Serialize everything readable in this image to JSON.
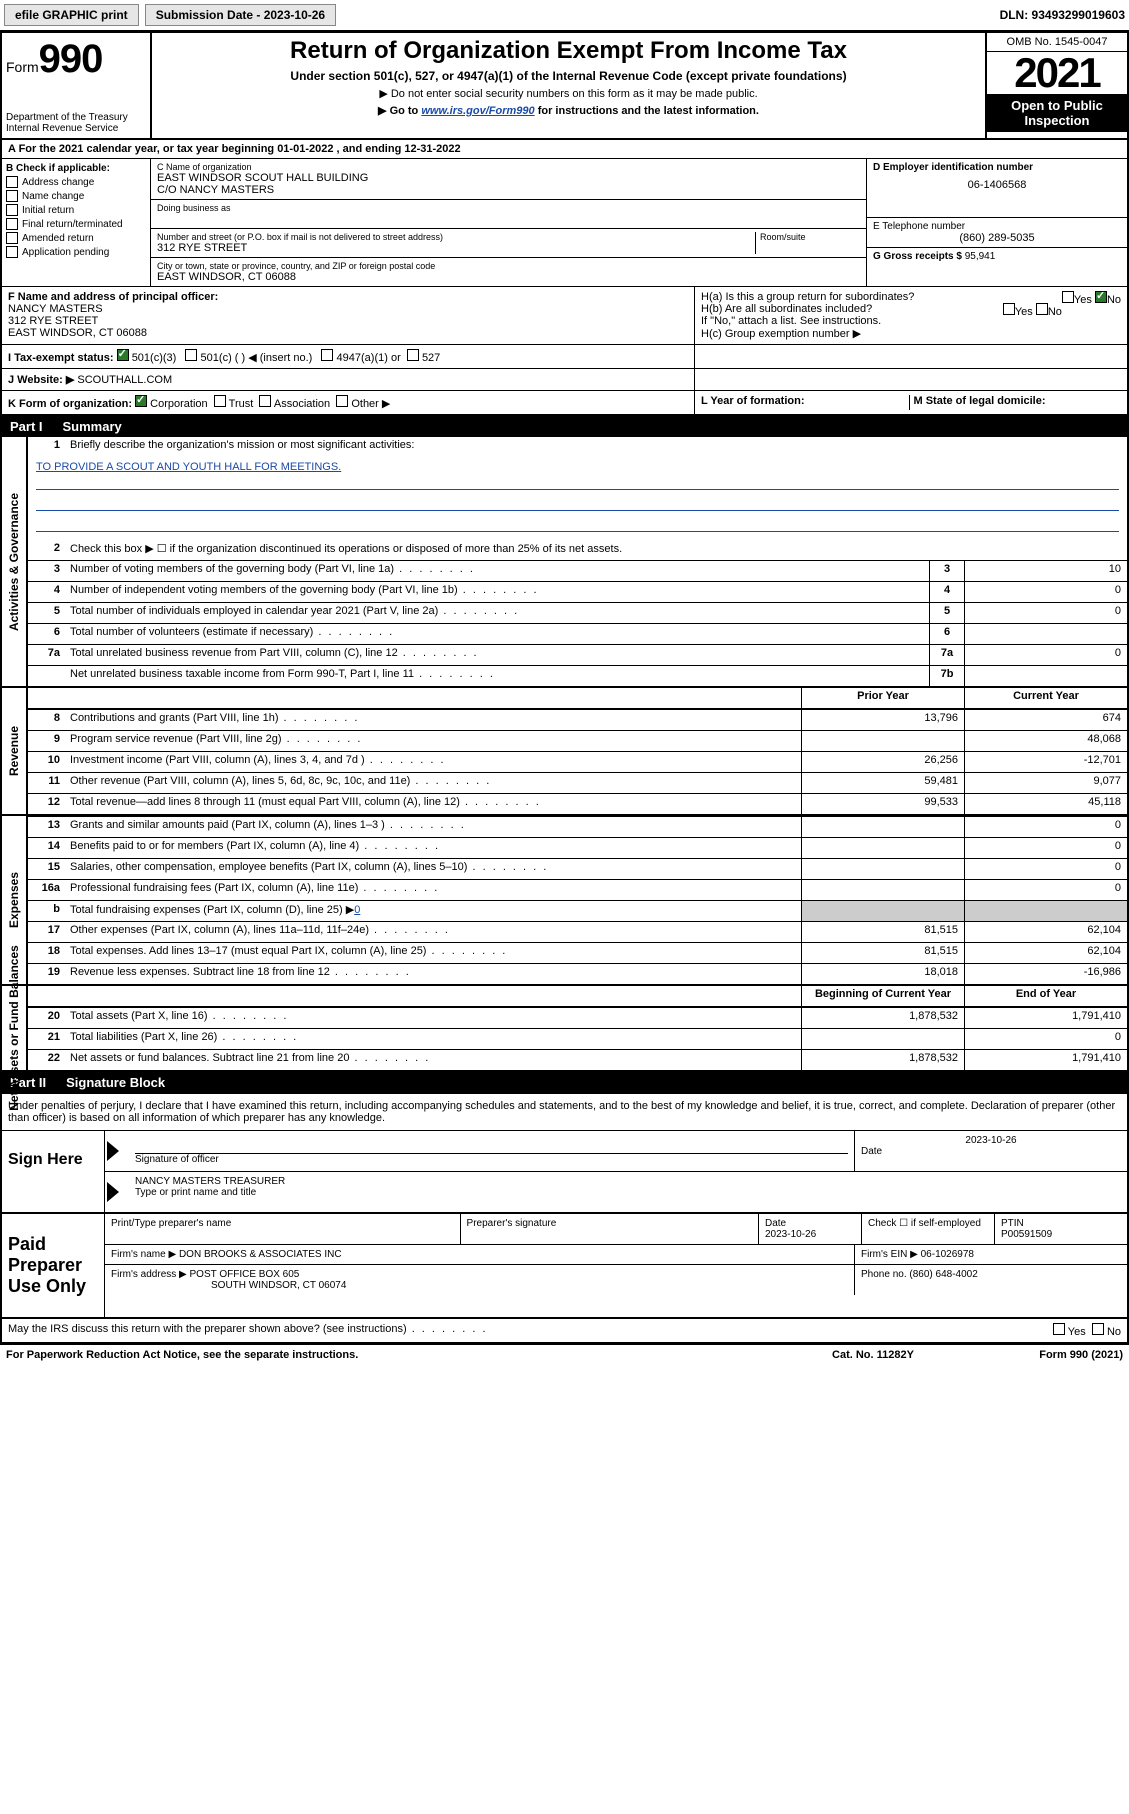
{
  "top": {
    "efile": "efile GRAPHIC print",
    "submission_label": "Submission Date - 2023-10-26",
    "dln": "DLN: 93493299019603"
  },
  "header": {
    "form_prefix": "Form",
    "form_number": "990",
    "dept": "Department of the Treasury",
    "irs": "Internal Revenue Service",
    "title": "Return of Organization Exempt From Income Tax",
    "subtitle": "Under section 501(c), 527, or 4947(a)(1) of the Internal Revenue Code (except private foundations)",
    "note1": "▶ Do not enter social security numbers on this form as it may be made public.",
    "note2_pre": "▶ Go to ",
    "note2_link": "www.irs.gov/Form990",
    "note2_post": " for instructions and the latest information.",
    "omb": "OMB No. 1545-0047",
    "year": "2021",
    "open": "Open to Public Inspection"
  },
  "lineA": "A For the 2021 calendar year, or tax year beginning 01-01-2022    , and ending 12-31-2022",
  "boxB": {
    "title": "B Check if applicable:",
    "items": [
      "Address change",
      "Name change",
      "Initial return",
      "Final return/terminated",
      "Amended return",
      "Application pending"
    ]
  },
  "boxC": {
    "name_label": "C Name of organization",
    "name1": "EAST WINDSOR SCOUT HALL BUILDING",
    "name2": "C/O NANCY MASTERS",
    "dba_label": "Doing business as",
    "addr_label": "Number and street (or P.O. box if mail is not delivered to street address)",
    "room_label": "Room/suite",
    "addr": "312 RYE STREET",
    "city_label": "City or town, state or province, country, and ZIP or foreign postal code",
    "city": "EAST WINDSOR, CT  06088"
  },
  "boxD": {
    "label": "D Employer identification number",
    "value": "06-1406568"
  },
  "boxE": {
    "label": "E Telephone number",
    "value": "(860) 289-5035"
  },
  "boxG": {
    "label": "G Gross receipts $",
    "value": "95,941"
  },
  "boxF": {
    "label": "F Name and address of principal officer:",
    "l1": "NANCY MASTERS",
    "l2": "312 RYE STREET",
    "l3": "EAST WINDSOR, CT  06088"
  },
  "boxH": {
    "a": "H(a)  Is this a group return for subordinates?",
    "b": "H(b)  Are all subordinates included?",
    "b_note": "If \"No,\" attach a list. See instructions.",
    "c": "H(c)  Group exemption number ▶",
    "yes": "Yes",
    "no": "No"
  },
  "boxI": {
    "label": "I  Tax-exempt status:",
    "o1": "501(c)(3)",
    "o2": "501(c) (   ) ◀ (insert no.)",
    "o3": "4947(a)(1) or",
    "o4": "527"
  },
  "boxJ": {
    "label": "J  Website: ▶",
    "value": "SCOUTHALL.COM"
  },
  "boxK": {
    "label": "K Form of organization:",
    "o1": "Corporation",
    "o2": "Trust",
    "o3": "Association",
    "o4": "Other ▶"
  },
  "boxL": {
    "label": "L Year of formation:"
  },
  "boxM": {
    "label": "M State of legal domicile:"
  },
  "part1": {
    "title_part": "Part I",
    "title": "Summary",
    "side1": "Activities & Governance",
    "side2": "Revenue",
    "side3": "Expenses",
    "side4": "Net Assets or Fund Balances",
    "q1": "Briefly describe the organization's mission or most significant activities:",
    "mission": "TO PROVIDE A SCOUT AND YOUTH HALL FOR MEETINGS.",
    "q2": "Check this box ▶ ☐  if the organization discontinued its operations or disposed of more than 25% of its net assets.",
    "rows_gov": [
      {
        "n": "3",
        "d": "Number of voting members of the governing body (Part VI, line 1a)",
        "k": "3",
        "v": "10"
      },
      {
        "n": "4",
        "d": "Number of independent voting members of the governing body (Part VI, line 1b)",
        "k": "4",
        "v": "0"
      },
      {
        "n": "5",
        "d": "Total number of individuals employed in calendar year 2021 (Part V, line 2a)",
        "k": "5",
        "v": "0"
      },
      {
        "n": "6",
        "d": "Total number of volunteers (estimate if necessary)",
        "k": "6",
        "v": ""
      },
      {
        "n": "7a",
        "d": "Total unrelated business revenue from Part VIII, column (C), line 12",
        "k": "7a",
        "v": "0"
      },
      {
        "n": "",
        "d": "Net unrelated business taxable income from Form 990-T, Part I, line 11",
        "k": "7b",
        "v": ""
      }
    ],
    "col_prior": "Prior Year",
    "col_current": "Current Year",
    "rows_rev": [
      {
        "n": "8",
        "d": "Contributions and grants (Part VIII, line 1h)",
        "p": "13,796",
        "c": "674"
      },
      {
        "n": "9",
        "d": "Program service revenue (Part VIII, line 2g)",
        "p": "",
        "c": "48,068"
      },
      {
        "n": "10",
        "d": "Investment income (Part VIII, column (A), lines 3, 4, and 7d )",
        "p": "26,256",
        "c": "-12,701"
      },
      {
        "n": "11",
        "d": "Other revenue (Part VIII, column (A), lines 5, 6d, 8c, 9c, 10c, and 11e)",
        "p": "59,481",
        "c": "9,077"
      },
      {
        "n": "12",
        "d": "Total revenue—add lines 8 through 11 (must equal Part VIII, column (A), line 12)",
        "p": "99,533",
        "c": "45,118"
      }
    ],
    "rows_exp": [
      {
        "n": "13",
        "d": "Grants and similar amounts paid (Part IX, column (A), lines 1–3 )",
        "p": "",
        "c": "0"
      },
      {
        "n": "14",
        "d": "Benefits paid to or for members (Part IX, column (A), line 4)",
        "p": "",
        "c": "0"
      },
      {
        "n": "15",
        "d": "Salaries, other compensation, employee benefits (Part IX, column (A), lines 5–10)",
        "p": "",
        "c": "0"
      },
      {
        "n": "16a",
        "d": "Professional fundraising fees (Part IX, column (A), line 11e)",
        "p": "",
        "c": "0"
      }
    ],
    "row_b": {
      "n": "b",
      "d": "Total fundraising expenses (Part IX, column (D), line 25) ▶",
      "u": "0"
    },
    "rows_exp2": [
      {
        "n": "17",
        "d": "Other expenses (Part IX, column (A), lines 11a–11d, 11f–24e)",
        "p": "81,515",
        "c": "62,104"
      },
      {
        "n": "18",
        "d": "Total expenses. Add lines 13–17 (must equal Part IX, column (A), line 25)",
        "p": "81,515",
        "c": "62,104"
      },
      {
        "n": "19",
        "d": "Revenue less expenses. Subtract line 18 from line 12",
        "p": "18,018",
        "c": "-16,986"
      }
    ],
    "col_begin": "Beginning of Current Year",
    "col_end": "End of Year",
    "rows_net": [
      {
        "n": "20",
        "d": "Total assets (Part X, line 16)",
        "p": "1,878,532",
        "c": "1,791,410"
      },
      {
        "n": "21",
        "d": "Total liabilities (Part X, line 26)",
        "p": "",
        "c": "0"
      },
      {
        "n": "22",
        "d": "Net assets or fund balances. Subtract line 21 from line 20",
        "p": "1,878,532",
        "c": "1,791,410"
      }
    ]
  },
  "part2": {
    "title_part": "Part II",
    "title": "Signature Block",
    "decl": "Under penalties of perjury, I declare that I have examined this return, including accompanying schedules and statements, and to the best of my knowledge and belief, it is true, correct, and complete. Declaration of preparer (other than officer) is based on all information of which preparer has any knowledge.",
    "sign_here": "Sign Here",
    "sig_officer": "Signature of officer",
    "date": "Date",
    "date_val": "2023-10-26",
    "name_title": "NANCY MASTERS  TREASURER",
    "name_label": "Type or print name and title",
    "paid": "Paid Preparer Use Only",
    "prep_name_label": "Print/Type preparer's name",
    "prep_sig_label": "Preparer's signature",
    "prep_date_label": "Date",
    "prep_date": "2023-10-26",
    "check_self": "Check ☐ if self-employed",
    "ptin_label": "PTIN",
    "ptin": "P00591509",
    "firm_name_label": "Firm's name    ▶",
    "firm_name": "DON BROOKS & ASSOCIATES INC",
    "firm_ein_label": "Firm's EIN ▶",
    "firm_ein": "06-1026978",
    "firm_addr_label": "Firm's address ▶",
    "firm_addr1": "POST OFFICE BOX 605",
    "firm_addr2": "SOUTH WINDSOR, CT  06074",
    "phone_label": "Phone no.",
    "phone": "(860) 648-4002",
    "may_irs": "May the IRS discuss this return with the preparer shown above? (see instructions)",
    "paperwork": "For Paperwork Reduction Act Notice, see the separate instructions.",
    "catno": "Cat. No. 11282Y",
    "formno": "Form 990 (2021)"
  }
}
